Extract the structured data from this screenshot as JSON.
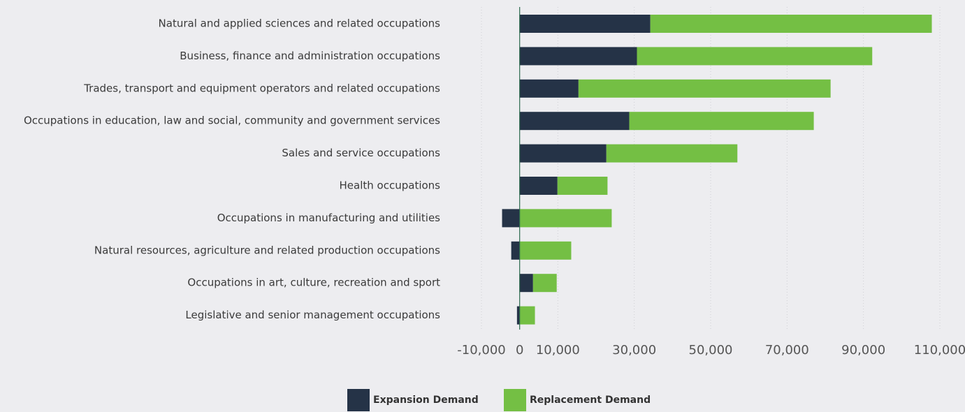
{
  "chart_data": {
    "type": "stacked-barh",
    "categories": [
      "Natural and applied sciences and related occupations",
      "Business, finance and administration occupations",
      "Trades, transport and equipment operators and related occupations",
      "Occupations in education, law and social, community and government services",
      "Sales and service occupations",
      "Health occupations",
      "Occupations in manufacturing and utilities",
      "Natural resources, agriculture and related production occupations",
      "Occupations in art, culture, recreation and sport",
      "Legislative and senior management occupations"
    ],
    "series": [
      {
        "name": "Expansion Demand",
        "color": "#253347",
        "values": [
          34200,
          30700,
          15400,
          28700,
          22700,
          9900,
          -4600,
          -2200,
          3500,
          -700
        ]
      },
      {
        "name": "Replacement Demand",
        "color": "#74bf44",
        "values": [
          73700,
          61600,
          66000,
          48300,
          34300,
          13100,
          24100,
          13500,
          6200,
          4000
        ]
      }
    ],
    "xlim": [
      -10000,
      110000
    ],
    "xticks": [
      {
        "value": -10000,
        "label": "-10,000"
      },
      0,
      {
        "value": 10000,
        "label": "10,000"
      },
      {
        "value": 30000,
        "label": "30,000"
      },
      {
        "value": 50000,
        "label": "50,000"
      },
      {
        "value": 70000,
        "label": "70,000"
      },
      {
        "value": 90000,
        "label": "90,000"
      },
      {
        "value": 110000,
        "label": "110,000"
      }
    ],
    "grid": true,
    "legend": "bottom"
  }
}
